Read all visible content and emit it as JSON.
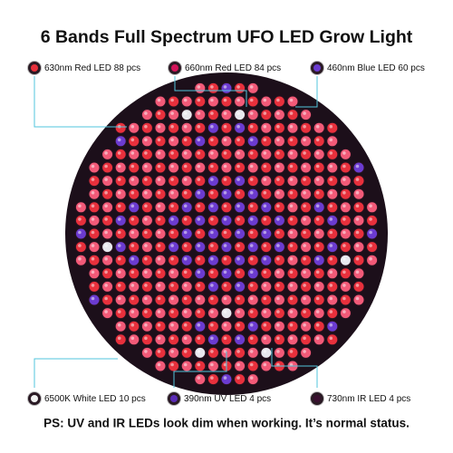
{
  "header": {
    "title": "6 Bands Full Spectrum UFO LED Grow Light"
  },
  "labels": [
    {
      "text": "630nm Red LED 88 pcs"
    },
    {
      "text": "660nm Red LED 84 pcs"
    },
    {
      "text": "460nm Blue LED 60 pcs"
    },
    {
      "text": "6500K White LED 10 pcs"
    },
    {
      "text": "390nm UV LED 4 pcs"
    },
    {
      "text": "730nm IR LED 4 pcs"
    }
  ],
  "footer": {
    "note": "PS: UV and IR LEDs look dim when working. It’s normal status."
  }
}
